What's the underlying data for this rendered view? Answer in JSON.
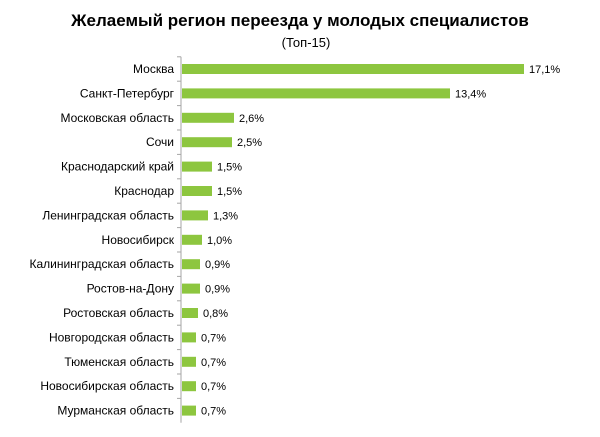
{
  "chart_data": {
    "type": "bar",
    "orientation": "horizontal",
    "title": "Желаемый регион переезда у молодых специалистов",
    "subtitle": "(Топ-15)",
    "categories": [
      "Москва",
      "Санкт-Петербург",
      "Московская область",
      "Сочи",
      "Краснодарский край",
      "Краснодар",
      "Ленинградская область",
      "Новосибирск",
      "Калининградская область",
      "Ростов-на-Дону",
      "Ростовская область",
      "Новгородская область",
      "Тюменская область",
      "Новосибирская область",
      "Мурманская область"
    ],
    "values": [
      17.1,
      13.4,
      2.6,
      2.5,
      1.5,
      1.5,
      1.3,
      1.0,
      0.9,
      0.9,
      0.8,
      0.7,
      0.7,
      0.7,
      0.7
    ],
    "value_labels": [
      "17,1%",
      "13,4%",
      "2,6%",
      "2,5%",
      "1,5%",
      "1,5%",
      "1,3%",
      "1,0%",
      "0,9%",
      "0,9%",
      "0,8%",
      "0,7%",
      "0,7%",
      "0,7%",
      "0,7%"
    ],
    "xlim": [
      0,
      17.1
    ],
    "grid": false,
    "legend": "none",
    "bar_color": "#8DC63F",
    "axis_color": "#A6A6A6"
  }
}
